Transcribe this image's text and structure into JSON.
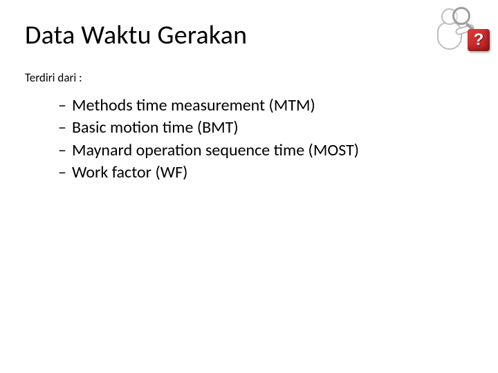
{
  "title": "Data Waktu Gerakan",
  "subtitle": "Terdiri dari :",
  "items": [
    "Methods time measurement (MTM)",
    "Basic motion time (BMT)",
    "Maynard operation sequence time (MOST)",
    "Work factor (WF)"
  ],
  "qmark": "?",
  "colors": {
    "text": "#000000",
    "background": "#ffffff",
    "qmark_red_light": "#e03a3a",
    "qmark_red_dark": "#b51e1e",
    "figure_border": "#bdbdbd",
    "magnifier": "#9e9e9e"
  },
  "fonts": {
    "title_size_pt": 28,
    "subtitle_size_pt": 13,
    "item_size_pt": 18,
    "family": "Calibri"
  }
}
